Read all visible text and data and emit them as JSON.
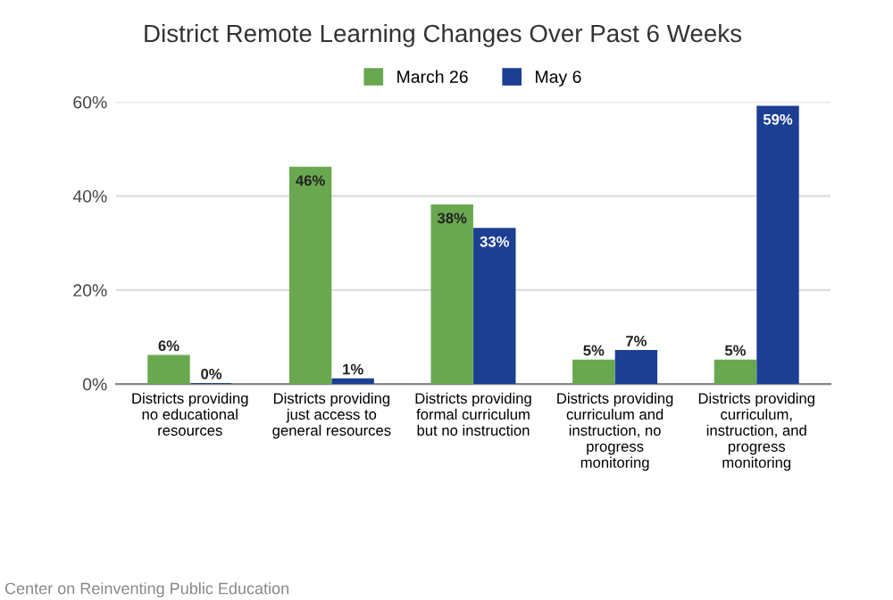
{
  "chart_data": {
    "type": "bar",
    "title": "District Remote Learning Changes Over Past 6 Weeks",
    "categories": [
      "Districts providing\nno educational\nresources",
      "Districts providing\njust access to\ngeneral resources",
      "Districts providing\nformal curriculum\nbut no instruction",
      "Districts providing\ncurriculum and\ninstruction, no\nprogress\nmonitoring",
      "Districts providing\ncurriculum,\ninstruction, and\nprogress\nmonitoring"
    ],
    "series": [
      {
        "name": "March 26",
        "color": "#6aa84f",
        "values": [
          6,
          46,
          38,
          5,
          5
        ],
        "value_labels": [
          "6%",
          "46%",
          "38%",
          "5%",
          "5%"
        ]
      },
      {
        "name": "May 6",
        "color": "#1c3f94",
        "values": [
          0,
          1,
          33,
          7,
          59
        ],
        "value_labels": [
          "0%",
          "1%",
          "33%",
          "7%",
          "59%"
        ]
      }
    ],
    "ylim": [
      0,
      60
    ],
    "yticks": [
      {
        "value": 0,
        "label": "0%"
      },
      {
        "value": 20,
        "label": "20%"
      },
      {
        "value": 40,
        "label": "40%"
      },
      {
        "value": 60,
        "label": "60%"
      }
    ],
    "grid": "y",
    "legend": "top",
    "annotations": [
      "Center on Reinventing Public Education"
    ]
  }
}
